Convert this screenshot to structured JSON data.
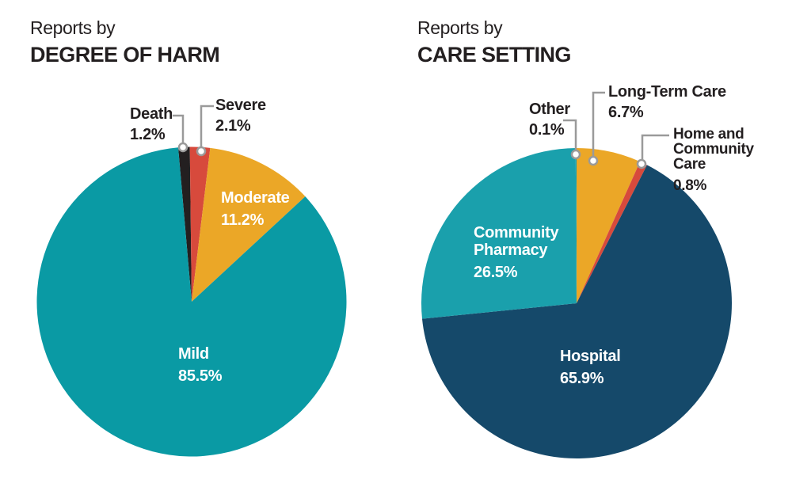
{
  "colors": {
    "text_dark": "#231f20",
    "label_on_slice": "#ffffff",
    "leader_gray": "#9a9a9a",
    "background": "#ffffff"
  },
  "charts": [
    {
      "title": {
        "line1": "Reports by",
        "line2": "DEGREE OF HARM"
      },
      "chart_data": {
        "type": "pie",
        "start_angle_deg": -5,
        "unit": "%",
        "slices": [
          {
            "label": "Death",
            "value": 1.2,
            "pct": "1.2%",
            "color": "#231f20",
            "label_placement": "outside"
          },
          {
            "label": "Severe",
            "value": 2.1,
            "pct": "2.1%",
            "color": "#d74a3c",
            "label_placement": "outside"
          },
          {
            "label": "Moderate",
            "value": 11.2,
            "pct": "11.2%",
            "color": "#eba727",
            "label_placement": "inside"
          },
          {
            "label": "Mild",
            "value": 85.5,
            "pct": "85.5%",
            "color": "#0a9aa4",
            "label_placement": "inside"
          }
        ]
      }
    },
    {
      "title": {
        "line1": "Reports by",
        "line2": "CARE SETTING"
      },
      "chart_data": {
        "type": "pie",
        "start_angle_deg": 0,
        "unit": "%",
        "slices": [
          {
            "label": "Long-Term Care",
            "value": 6.7,
            "pct": "6.7%",
            "color": "#eba727",
            "label_placement": "outside"
          },
          {
            "label": "Home and Community Care",
            "label_lines": [
              "Home and",
              "Community",
              "Care"
            ],
            "value": 0.8,
            "pct": "0.8%",
            "color": "#d74a3c",
            "label_placement": "outside"
          },
          {
            "label": "Hospital",
            "value": 65.9,
            "pct": "65.9%",
            "color": "#15496a",
            "label_placement": "inside"
          },
          {
            "label": "Community Pharmacy",
            "label_lines": [
              "Community",
              "Pharmacy"
            ],
            "value": 26.5,
            "pct": "26.5%",
            "color": "#1aa0ac",
            "label_placement": "inside"
          },
          {
            "label": "Other",
            "value": 0.1,
            "pct": "0.1%",
            "color": "#1aa0ac",
            "label_placement": "outside"
          }
        ]
      }
    }
  ]
}
